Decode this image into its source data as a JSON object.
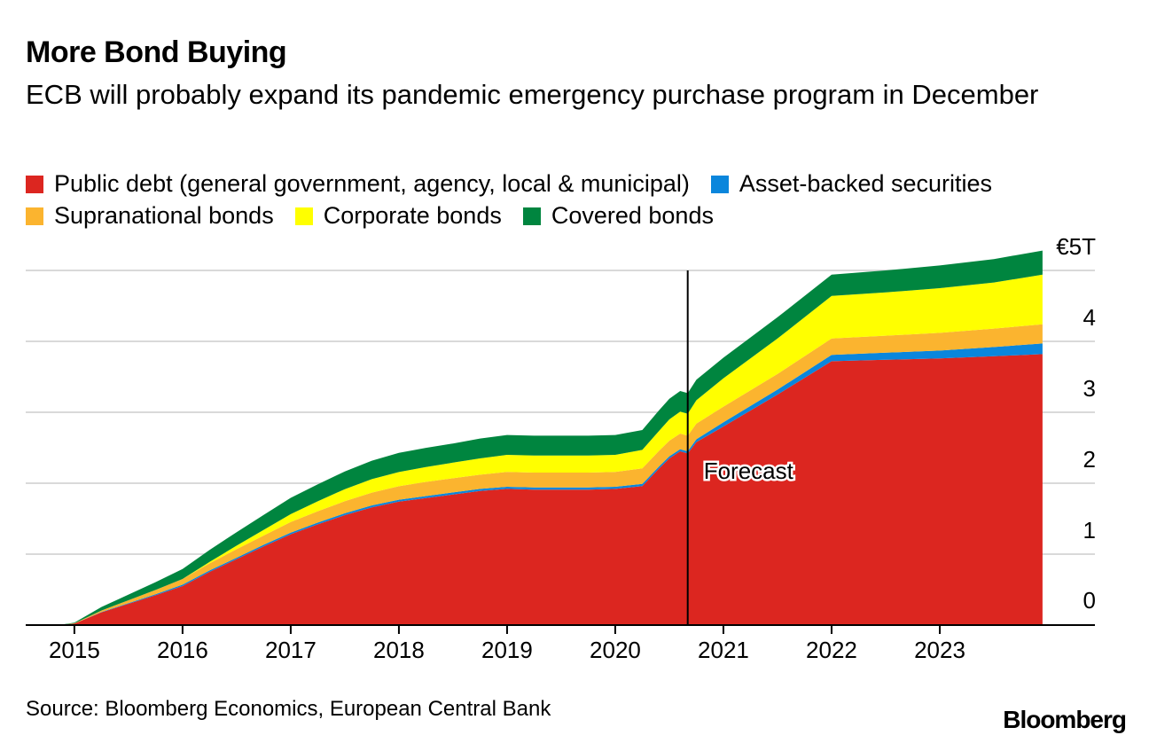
{
  "title": "More Bond Buying",
  "subtitle": "ECB will probably expand its pandemic emergency purchase program in December",
  "legend": [
    {
      "label": "Public debt (general government, agency, local & municipal)",
      "color": "#dc2620"
    },
    {
      "label": "Asset-backed securities",
      "color": "#0a86dc"
    },
    {
      "label": "Supranational bonds",
      "color": "#fbb42f"
    },
    {
      "label": "Corporate bonds",
      "color": "#ffff00"
    },
    {
      "label": "Covered bonds",
      "color": "#00853f"
    }
  ],
  "source": "Source: Bloomberg Economics, European Central Bank",
  "logo": "Bloomberg",
  "chart_data": {
    "type": "area",
    "stacked": true,
    "unit": "€ trillion",
    "y_ticks": [
      {
        "value": 0,
        "label": "0"
      },
      {
        "value": 1,
        "label": "1"
      },
      {
        "value": 2,
        "label": "2"
      },
      {
        "value": 3,
        "label": "3"
      },
      {
        "value": 4,
        "label": "4"
      },
      {
        "value": 5,
        "label": "€5T"
      }
    ],
    "x_ticks": [
      {
        "value": 2015,
        "label": "2015"
      },
      {
        "value": 2016,
        "label": "2016"
      },
      {
        "value": 2017,
        "label": "2017"
      },
      {
        "value": 2018,
        "label": "2018"
      },
      {
        "value": 2019,
        "label": "2019"
      },
      {
        "value": 2020,
        "label": "2020"
      },
      {
        "value": 2021,
        "label": "2021"
      },
      {
        "value": 2022,
        "label": "2022"
      },
      {
        "value": 2023,
        "label": "2023"
      }
    ],
    "xlim": [
      2014.55,
      2024.0
    ],
    "ylim": [
      0,
      5
    ],
    "forecast": {
      "x": 2020.67,
      "label": "Forecast"
    },
    "x": [
      2014.85,
      2015.0,
      2015.25,
      2015.5,
      2015.75,
      2016.0,
      2016.25,
      2016.5,
      2016.75,
      2017.0,
      2017.25,
      2017.5,
      2017.75,
      2018.0,
      2018.25,
      2018.5,
      2018.75,
      2019.0,
      2019.25,
      2019.5,
      2019.75,
      2020.0,
      2020.25,
      2020.4,
      2020.5,
      2020.6,
      2020.67,
      2020.75,
      2021.0,
      2021.5,
      2022.0,
      2022.5,
      2023.0,
      2023.5,
      2023.95
    ],
    "series": [
      {
        "name": "Public debt (general government, agency, local & municipal)",
        "values": [
          0,
          0.02,
          0.18,
          0.3,
          0.42,
          0.55,
          0.75,
          0.93,
          1.11,
          1.28,
          1.42,
          1.55,
          1.66,
          1.74,
          1.79,
          1.84,
          1.89,
          1.92,
          1.91,
          1.91,
          1.91,
          1.92,
          1.96,
          2.2,
          2.35,
          2.45,
          2.42,
          2.58,
          2.8,
          3.25,
          3.72,
          3.74,
          3.76,
          3.79,
          3.82
        ]
      },
      {
        "name": "Asset-backed securities",
        "values": [
          0,
          0,
          0.005,
          0.01,
          0.015,
          0.02,
          0.02,
          0.02,
          0.022,
          0.024,
          0.025,
          0.026,
          0.027,
          0.028,
          0.029,
          0.03,
          0.03,
          0.03,
          0.03,
          0.03,
          0.03,
          0.03,
          0.03,
          0.03,
          0.03,
          0.03,
          0.03,
          0.04,
          0.06,
          0.07,
          0.09,
          0.1,
          0.11,
          0.13,
          0.15
        ]
      },
      {
        "name": "Supranational bonds",
        "values": [
          0,
          0.005,
          0.02,
          0.04,
          0.06,
          0.08,
          0.1,
          0.12,
          0.13,
          0.15,
          0.16,
          0.17,
          0.18,
          0.19,
          0.2,
          0.2,
          0.2,
          0.21,
          0.21,
          0.21,
          0.21,
          0.21,
          0.22,
          0.22,
          0.22,
          0.22,
          0.22,
          0.22,
          0.22,
          0.22,
          0.23,
          0.24,
          0.25,
          0.26,
          0.27
        ]
      },
      {
        "name": "Corporate bonds",
        "values": [
          0,
          0,
          0,
          0,
          0,
          0,
          0.02,
          0.05,
          0.08,
          0.11,
          0.14,
          0.17,
          0.19,
          0.2,
          0.21,
          0.22,
          0.23,
          0.24,
          0.24,
          0.24,
          0.24,
          0.24,
          0.26,
          0.28,
          0.3,
          0.31,
          0.31,
          0.33,
          0.4,
          0.5,
          0.6,
          0.61,
          0.63,
          0.65,
          0.7
        ]
      },
      {
        "name": "Covered bonds",
        "values": [
          0,
          0.01,
          0.05,
          0.08,
          0.11,
          0.14,
          0.17,
          0.19,
          0.21,
          0.23,
          0.24,
          0.25,
          0.26,
          0.27,
          0.27,
          0.27,
          0.28,
          0.28,
          0.28,
          0.28,
          0.28,
          0.28,
          0.28,
          0.29,
          0.29,
          0.29,
          0.29,
          0.29,
          0.29,
          0.3,
          0.3,
          0.31,
          0.32,
          0.33,
          0.34
        ]
      }
    ]
  }
}
